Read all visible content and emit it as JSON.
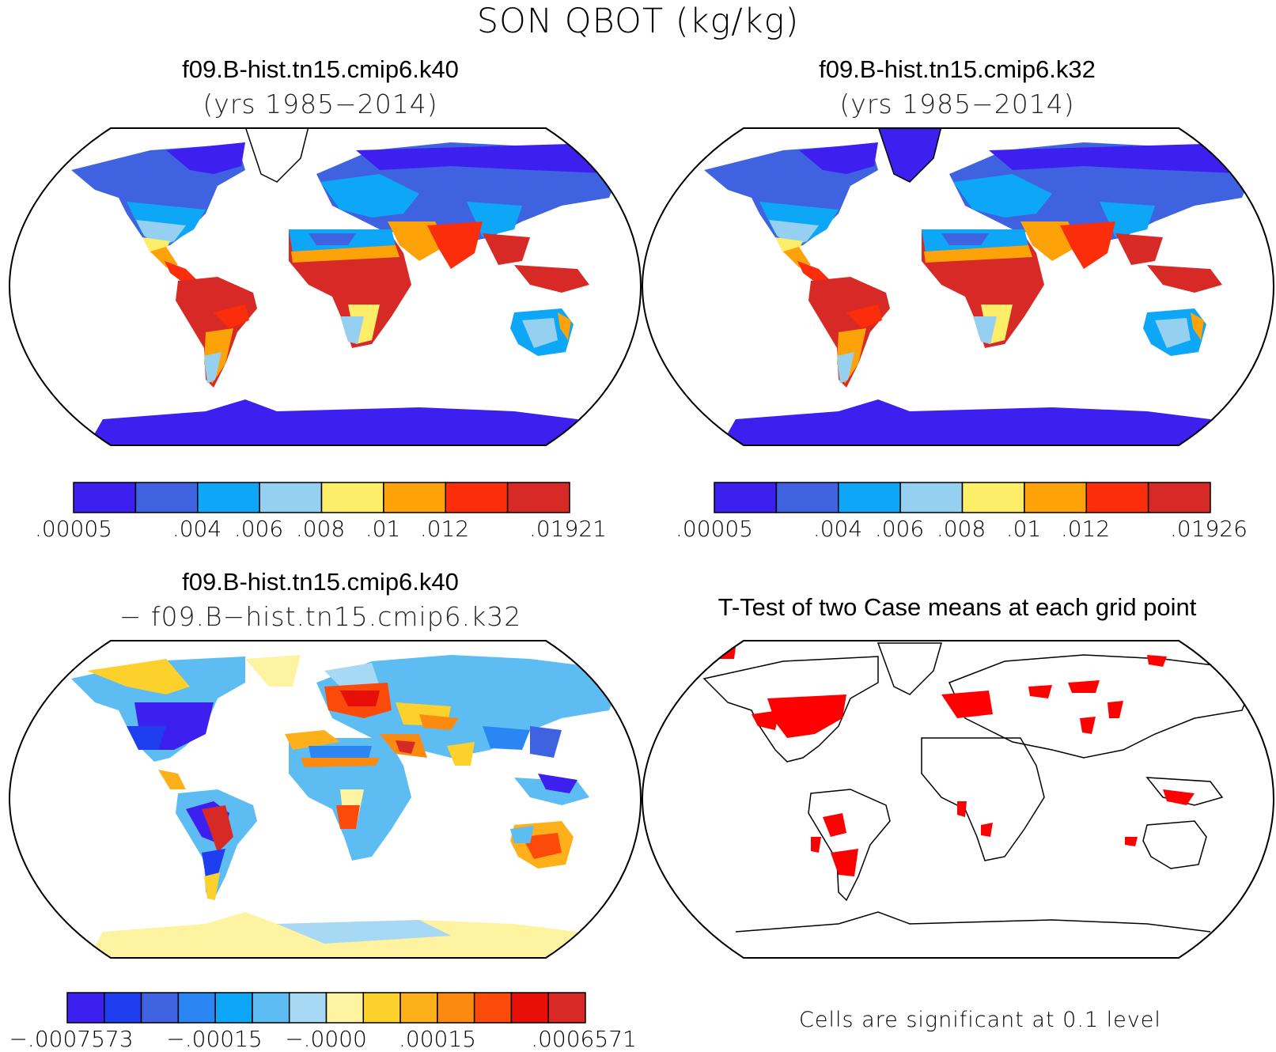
{
  "figure": {
    "title": "SON QBOT (kg/kg)"
  },
  "panels": {
    "top_left": {
      "case_name": "f09.B-hist.tn15.cmip6.k40",
      "years": "(yrs 1985−2014)"
    },
    "top_right": {
      "case_name": "f09.B-hist.tn15.cmip6.k32",
      "years": "(yrs 1985−2014)"
    },
    "bottom_left": {
      "case_name": "f09.B-hist.tn15.cmip6.k40",
      "minus_case": "− f09.B−hist.tn15.cmip6.k32"
    },
    "bottom_right": {
      "title": "T-Test of two Case means at each grid point",
      "note": "Cells are significant at 0.1 level"
    }
  },
  "colorbars": {
    "top_left": {
      "colors": [
        "#3d1ff0",
        "#3f62e0",
        "#0ea6f6",
        "#96d0f0",
        "#fdee6a",
        "#fea20a",
        "#fb2d0a",
        "#d72a26"
      ],
      "labels": [
        ".00005",
        ".004",
        ".006",
        ".008",
        ".01",
        ".012",
        ".01921"
      ]
    },
    "top_right": {
      "colors": [
        "#3d1ff0",
        "#3f62e0",
        "#0ea6f6",
        "#96d0f0",
        "#fdee6a",
        "#fea20a",
        "#fb2d0a",
        "#d72a26"
      ],
      "labels": [
        ".00005",
        ".004",
        ".006",
        ".008",
        ".01",
        ".012",
        ".01926"
      ]
    },
    "bottom_left": {
      "colors": [
        "#3d1ff0",
        "#1f3ef0",
        "#3f62e0",
        "#2b86f4",
        "#0ea6f6",
        "#5dbcf2",
        "#a8d9f4",
        "#fdf3a0",
        "#fdd12c",
        "#fdb01a",
        "#fd8a10",
        "#fb4a0a",
        "#e80f08",
        "#d72a26"
      ],
      "labels": [
        "−.0007573",
        "−.00015",
        "−.0000",
        ".00015",
        ".0006571"
      ]
    }
  },
  "legend_colors": {
    "ocean": "#ffffff",
    "outline": "#000000",
    "significant": "#ff0000"
  }
}
